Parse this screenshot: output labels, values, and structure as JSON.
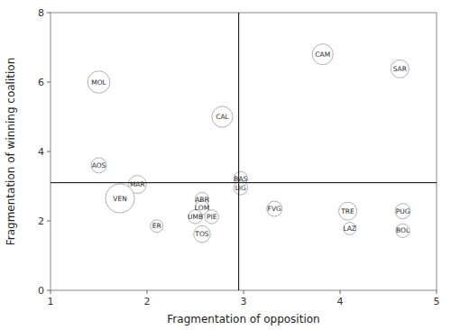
{
  "chart_data": {
    "type": "bubble",
    "xlabel": "Fragmentation of opposition",
    "ylabel": "Fragmentation of winning coalition",
    "labels": [
      "MOL",
      "AOS",
      "MAR",
      "VEN",
      "ER",
      "ABR",
      "LOM",
      "UMB",
      "PIE",
      "TOS",
      "CAL",
      "BAS",
      "LIG",
      "FVG",
      "CAM",
      "TRE",
      "LAZ",
      "SAR",
      "PUG",
      "BOL"
    ],
    "x": [
      1.5,
      1.5,
      1.9,
      1.72,
      2.1,
      2.57,
      2.57,
      2.5,
      2.67,
      2.57,
      2.78,
      2.97,
      2.97,
      3.32,
      3.82,
      4.08,
      4.1,
      4.62,
      4.65,
      4.65
    ],
    "values": [
      6.0,
      3.6,
      3.05,
      2.65,
      1.85,
      2.62,
      2.38,
      2.12,
      2.12,
      1.62,
      5.0,
      3.22,
      2.95,
      2.35,
      6.8,
      2.28,
      1.78,
      6.38,
      2.28,
      1.72
    ],
    "sizes": [
      0.32,
      0.22,
      0.26,
      0.42,
      0.18,
      0.2,
      0.2,
      0.2,
      0.2,
      0.24,
      0.3,
      0.2,
      0.2,
      0.22,
      0.3,
      0.26,
      0.18,
      0.26,
      0.22,
      0.2
    ],
    "hline": 3.1,
    "vline": 2.95,
    "color": "#b0b0b8",
    "xlim": [
      1,
      5
    ],
    "ylim": [
      0,
      8
    ],
    "xticks": [
      1,
      2,
      3,
      4,
      5
    ],
    "yticks": [
      0,
      2,
      4,
      6,
      8
    ]
  }
}
